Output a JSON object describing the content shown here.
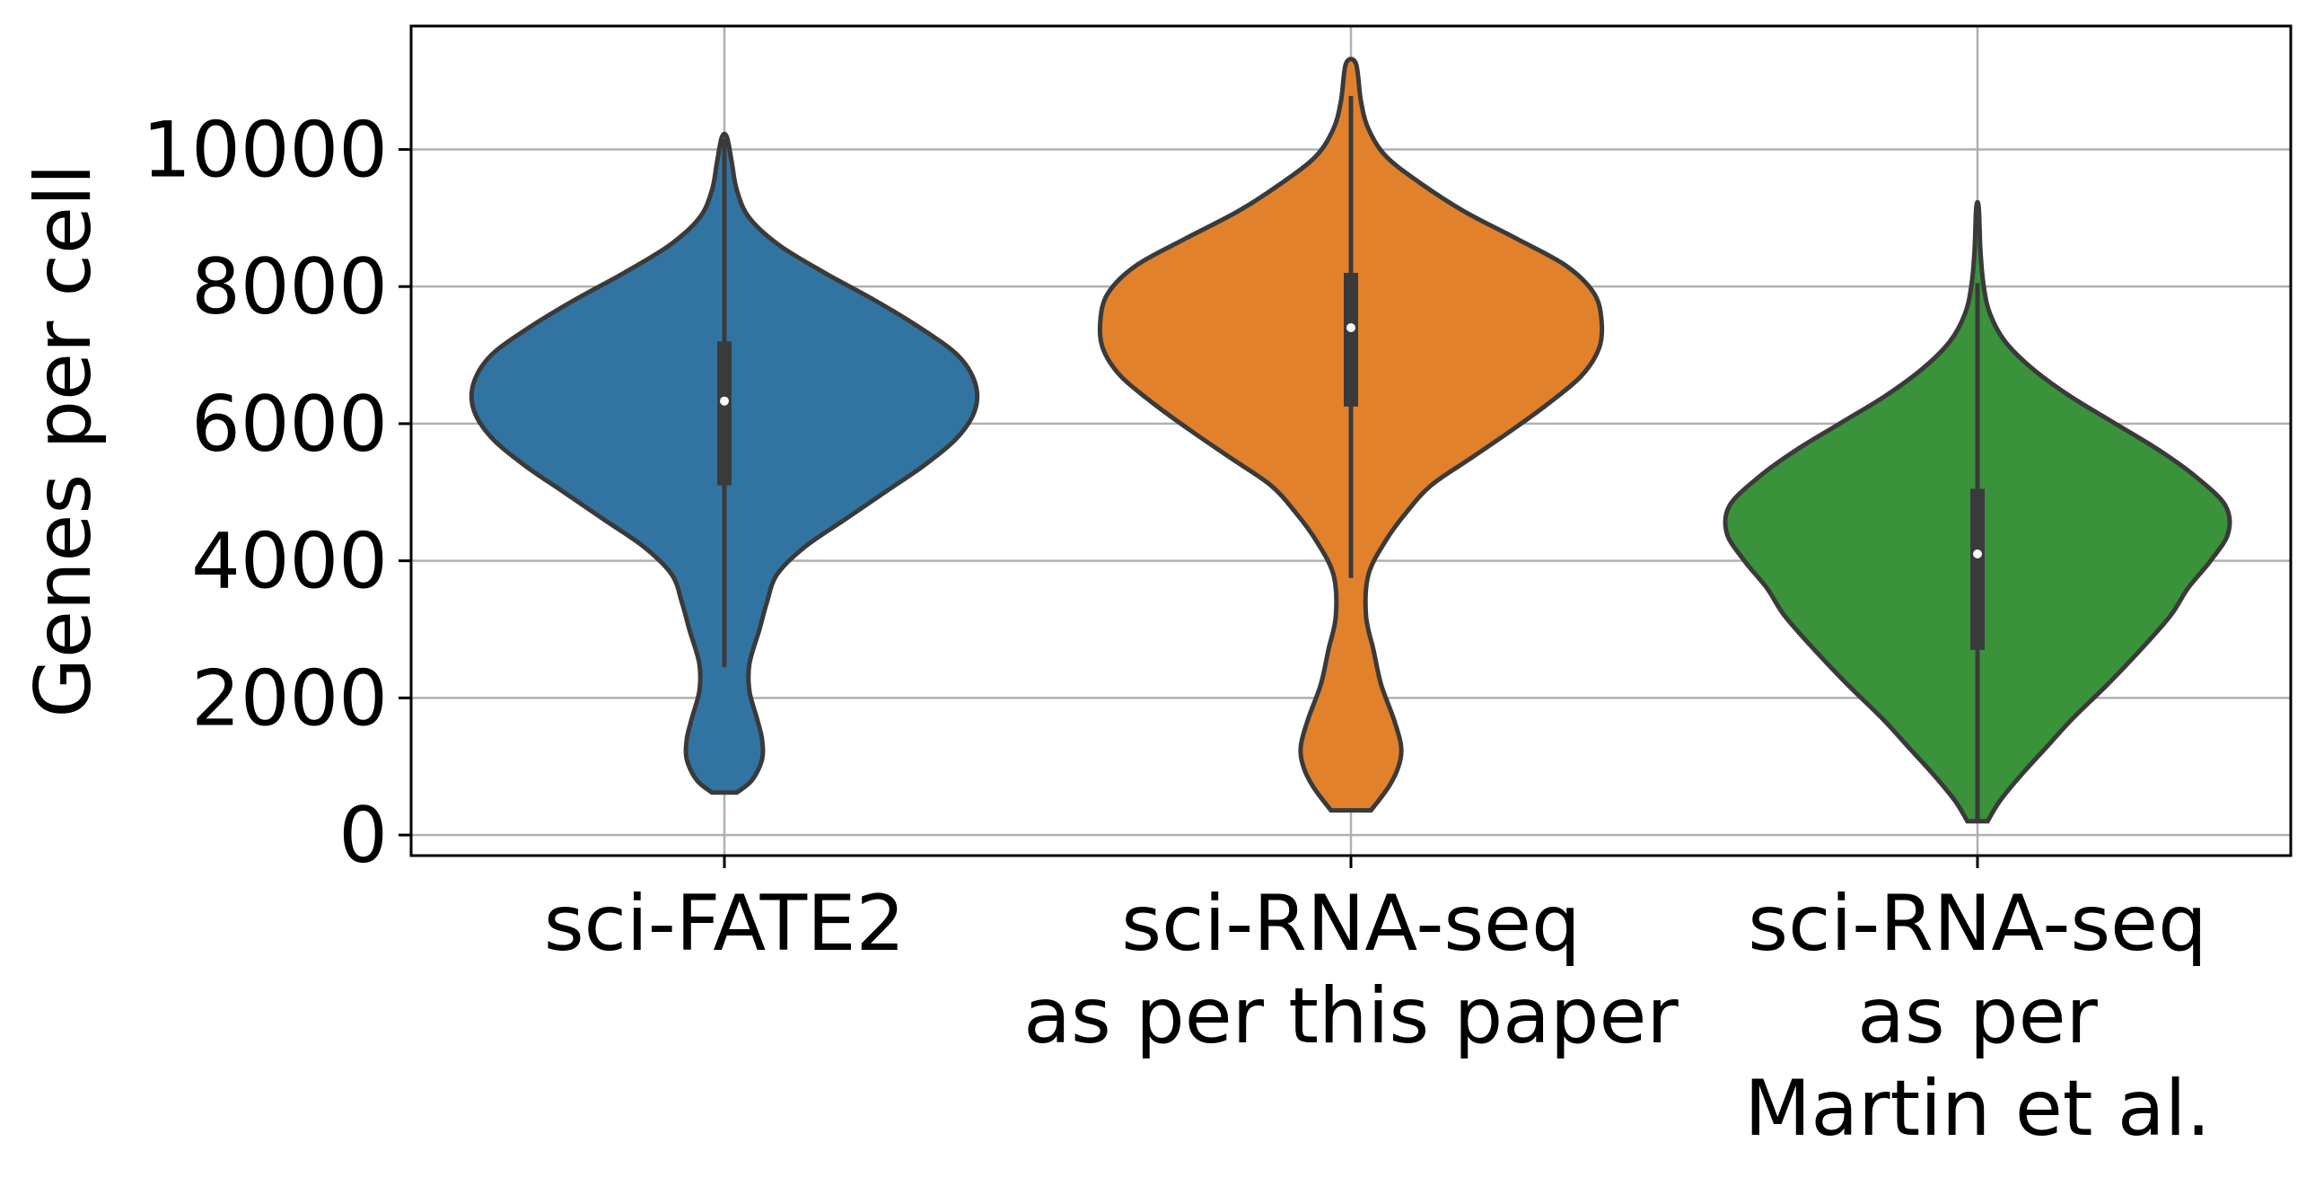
{
  "chart_data": {
    "type": "violin",
    "title": "",
    "xlabel": "",
    "ylabel": "Genes per cell",
    "ylim": [
      -300,
      11800
    ],
    "yticks": [
      0,
      2000,
      4000,
      6000,
      8000,
      10000
    ],
    "grid": true,
    "categories": [
      [
        "sci-FATE2"
      ],
      [
        "sci-RNA-seq",
        "as per this paper"
      ],
      [
        "sci-RNA-seq",
        "as per",
        "Martin et al."
      ]
    ],
    "colors": [
      "#3274a1",
      "#e1812c",
      "#3a923a"
    ],
    "series": [
      {
        "min": 620,
        "max": 10180,
        "q1": 5100,
        "median": 6330,
        "q3": 7200,
        "whisker_low": 2450,
        "whisker_high": 10150,
        "density": [
          [
            620,
            0.05
          ],
          [
            800,
            0.11
          ],
          [
            1100,
            0.15
          ],
          [
            1400,
            0.15
          ],
          [
            1700,
            0.13
          ],
          [
            2100,
            0.1
          ],
          [
            2500,
            0.1
          ],
          [
            3000,
            0.14
          ],
          [
            3400,
            0.17
          ],
          [
            3800,
            0.21
          ],
          [
            4200,
            0.32
          ],
          [
            4600,
            0.48
          ],
          [
            5000,
            0.64
          ],
          [
            5400,
            0.8
          ],
          [
            5800,
            0.93
          ],
          [
            6200,
            1.0
          ],
          [
            6600,
            1.0
          ],
          [
            7000,
            0.93
          ],
          [
            7400,
            0.78
          ],
          [
            7800,
            0.6
          ],
          [
            8200,
            0.4
          ],
          [
            8600,
            0.22
          ],
          [
            9000,
            0.1
          ],
          [
            9400,
            0.05
          ],
          [
            9800,
            0.03
          ],
          [
            10180,
            0.01
          ]
        ]
      },
      {
        "min": 360,
        "max": 11250,
        "q1": 6250,
        "median": 7400,
        "q3": 8200,
        "whisker_low": 3750,
        "whisker_high": 10780,
        "density": [
          [
            360,
            0.08
          ],
          [
            700,
            0.15
          ],
          [
            1000,
            0.19
          ],
          [
            1300,
            0.2
          ],
          [
            1700,
            0.17
          ],
          [
            2200,
            0.12
          ],
          [
            2700,
            0.09
          ],
          [
            3200,
            0.06
          ],
          [
            3800,
            0.07
          ],
          [
            4300,
            0.14
          ],
          [
            4700,
            0.22
          ],
          [
            5100,
            0.32
          ],
          [
            5500,
            0.48
          ],
          [
            5900,
            0.64
          ],
          [
            6300,
            0.79
          ],
          [
            6700,
            0.92
          ],
          [
            7100,
            0.99
          ],
          [
            7500,
            1.0
          ],
          [
            7900,
            0.97
          ],
          [
            8300,
            0.86
          ],
          [
            8700,
            0.66
          ],
          [
            9100,
            0.45
          ],
          [
            9500,
            0.28
          ],
          [
            9900,
            0.14
          ],
          [
            10300,
            0.07
          ],
          [
            10700,
            0.04
          ],
          [
            11250,
            0.02
          ]
        ]
      },
      {
        "min": 200,
        "max": 9150,
        "q1": 2700,
        "median": 4100,
        "q3": 5050,
        "whisker_low": 200,
        "whisker_high": 8050,
        "density": [
          [
            200,
            0.04
          ],
          [
            500,
            0.09
          ],
          [
            900,
            0.18
          ],
          [
            1300,
            0.28
          ],
          [
            1700,
            0.38
          ],
          [
            2200,
            0.52
          ],
          [
            2700,
            0.65
          ],
          [
            3200,
            0.77
          ],
          [
            3600,
            0.84
          ],
          [
            4000,
            0.93
          ],
          [
            4400,
            1.0
          ],
          [
            4800,
            0.99
          ],
          [
            5200,
            0.88
          ],
          [
            5600,
            0.73
          ],
          [
            6000,
            0.55
          ],
          [
            6400,
            0.37
          ],
          [
            6800,
            0.22
          ],
          [
            7200,
            0.11
          ],
          [
            7600,
            0.05
          ],
          [
            8000,
            0.025
          ],
          [
            8500,
            0.012
          ],
          [
            9150,
            0.005
          ]
        ]
      }
    ]
  }
}
